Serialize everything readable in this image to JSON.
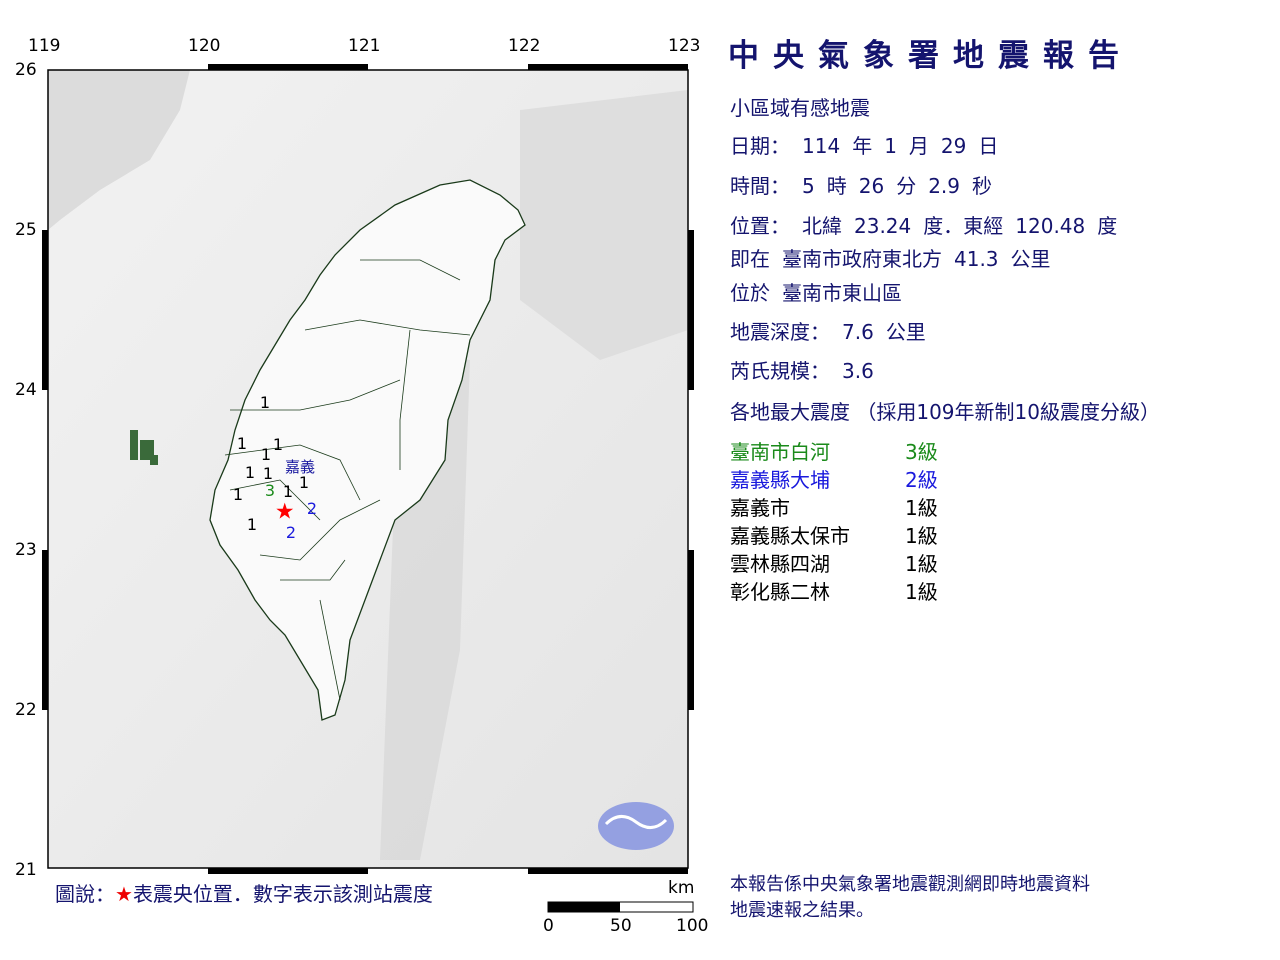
{
  "title": "中央氣象署地震報告",
  "subtitle": "小區域有感地震",
  "date": {
    "label": "日期：",
    "year": "114",
    "year_unit": "年",
    "month": "1",
    "month_unit": "月",
    "day": "29",
    "day_unit": "日"
  },
  "time": {
    "label": "時間：",
    "hour": "5",
    "hour_unit": "時",
    "minute": "26",
    "minute_unit": "分",
    "second": "2.9",
    "second_unit": "秒"
  },
  "position": {
    "label": "位置：",
    "lat_label": "北緯",
    "lat": "23.24",
    "lat_unit": "度．東經",
    "lon": "120.48",
    "lon_unit": "度"
  },
  "relative": {
    "label": "即在",
    "text": "臺南市政府東北方",
    "distance": "41.3",
    "unit": "公里"
  },
  "located": {
    "label": "位於",
    "text": "臺南市東山區"
  },
  "depth": {
    "label": "地震深度：",
    "value": "7.6",
    "unit": "公里"
  },
  "magnitude": {
    "label": "芮氏規模：",
    "value": "3.6"
  },
  "intensity_header": "各地最大震度 （採用109年新制10級震度分級）",
  "intensities": [
    {
      "location": "臺南市白河",
      "level": "3級",
      "color": "#1a8a1a"
    },
    {
      "location": "嘉義縣大埔",
      "level": "2級",
      "color": "#1a1add"
    },
    {
      "location": "嘉義市",
      "level": "1級",
      "color": "#000000"
    },
    {
      "location": "嘉義縣太保市",
      "level": "1級",
      "color": "#000000"
    },
    {
      "location": "雲林縣四湖",
      "level": "1級",
      "color": "#000000"
    },
    {
      "location": "彰化縣二林",
      "level": "1級",
      "color": "#000000"
    }
  ],
  "map": {
    "lon_ticks": [
      "119",
      "120",
      "121",
      "122",
      "123"
    ],
    "lat_ticks": [
      "26",
      "25",
      "24",
      "23",
      "22",
      "21"
    ],
    "epicenter": {
      "lat": 23.24,
      "lon": 120.48,
      "color": "#ff0000"
    },
    "city_label": "嘉義",
    "station_values": [
      "1",
      "1",
      "1",
      "1",
      "1",
      "1",
      "1",
      "1",
      "3",
      "1",
      "2",
      "2",
      "1"
    ],
    "scale": {
      "unit": "km",
      "labels": [
        "0",
        "50",
        "100"
      ]
    }
  },
  "legend": {
    "prefix": "圖說：",
    "star": "★",
    "text": "表震央位置．數字表示該測站震度"
  },
  "footer": [
    "本報告係中央氣象署地震觀測網即時地震資料",
    "地震速報之結果。"
  ]
}
